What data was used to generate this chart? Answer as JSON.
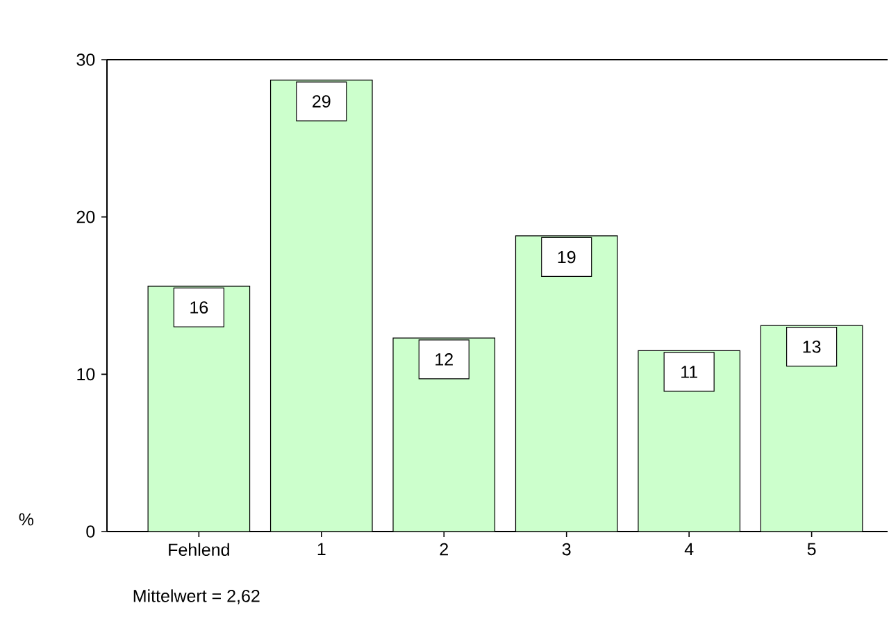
{
  "chart_data": {
    "type": "bar",
    "categories": [
      "Fehlend",
      "1",
      "2",
      "3",
      "4",
      "5"
    ],
    "values": [
      15.6,
      28.7,
      12.3,
      18.8,
      11.5,
      13.1
    ],
    "value_labels": [
      "16",
      "29",
      "12",
      "19",
      "11",
      "13"
    ],
    "color": "#ccffcc",
    "ylim": [
      0,
      30
    ],
    "yticks": [
      0,
      10,
      20,
      30
    ],
    "ylabel": "%",
    "annotations": [
      "Mittelwert = 2,62"
    ]
  }
}
